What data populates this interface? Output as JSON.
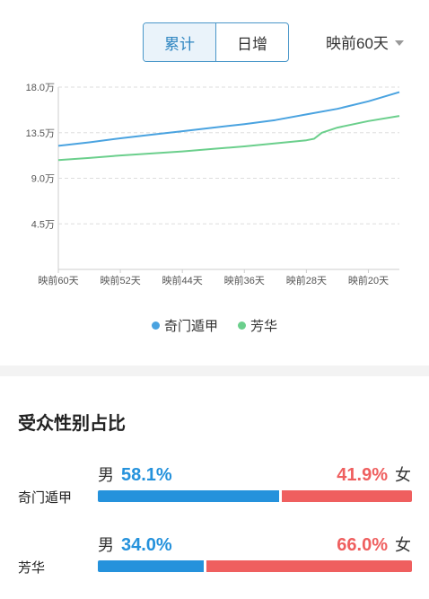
{
  "tabs": [
    {
      "label": "累计",
      "active": true
    },
    {
      "label": "日增",
      "active": false
    }
  ],
  "range_select": {
    "value": "映前60天"
  },
  "chart_data": {
    "type": "line",
    "y_ticks": [
      "18.0万",
      "13.5万",
      "9.0万",
      "4.5万"
    ],
    "y_tick_values": [
      18.0,
      13.5,
      9.0,
      4.5
    ],
    "ylim": [
      0,
      18.0
    ],
    "x_ticks": [
      "映前60天",
      "映前52天",
      "映前44天",
      "映前36天",
      "映前28天",
      "映前20天"
    ],
    "x_tick_values": [
      60,
      52,
      44,
      36,
      28,
      20
    ],
    "xlim": [
      60,
      16
    ],
    "grid": true,
    "legend_position": "bottom",
    "series": [
      {
        "name": "奇门遁甲",
        "color": "#4aa3e0",
        "x": [
          60,
          56,
          52,
          48,
          44,
          40,
          36,
          32,
          28,
          24,
          20,
          16
        ],
        "y": [
          12.2,
          12.55,
          12.95,
          13.3,
          13.65,
          14.0,
          14.35,
          14.75,
          15.3,
          15.85,
          16.6,
          17.5
        ]
      },
      {
        "name": "芳华",
        "color": "#6bcf8c",
        "x": [
          60,
          56,
          52,
          48,
          44,
          40,
          36,
          32,
          28,
          27,
          26,
          24,
          20,
          16
        ],
        "y": [
          10.8,
          11.0,
          11.25,
          11.45,
          11.65,
          11.9,
          12.15,
          12.45,
          12.75,
          12.9,
          13.5,
          14.0,
          14.65,
          15.15
        ]
      }
    ]
  },
  "legend": [
    {
      "label": "奇门遁甲",
      "color": "#4aa3e0"
    },
    {
      "label": "芳华",
      "color": "#6bcf8c"
    }
  ],
  "gender_section": {
    "title": "受众性别占比",
    "male_symbol": "男",
    "female_symbol": "女",
    "rows": [
      {
        "name": "奇门遁甲",
        "male_pct_label": "58.1%",
        "female_pct_label": "41.9%",
        "male_value": 58.1,
        "female_value": 41.9
      },
      {
        "name": "芳华",
        "male_pct_label": "34.0%",
        "female_pct_label": "66.0%",
        "male_value": 34.0,
        "female_value": 66.0
      }
    ]
  }
}
